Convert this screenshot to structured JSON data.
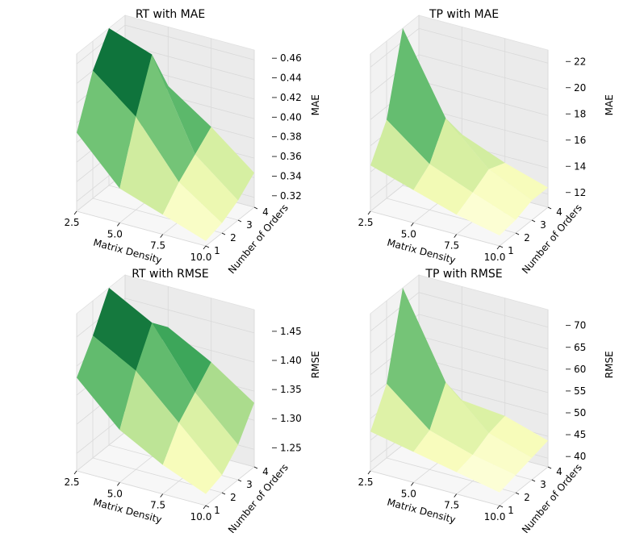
{
  "chart_data": [
    {
      "type": "surface3d",
      "title": "RT with MAE",
      "xlabel": "Matrix Density",
      "ylabel": "Number of Orders",
      "zlabel": "MAE",
      "x": [
        2.5,
        5.0,
        7.5,
        10.0
      ],
      "y": [
        1,
        2,
        3,
        4
      ],
      "xticks": [
        "2.5",
        "5.0",
        "7.5",
        "10.0"
      ],
      "yticks": [
        "1",
        "2",
        "3",
        "4"
      ],
      "zticks": [
        "0.32",
        "0.34",
        "0.36",
        "0.38",
        "0.40",
        "0.42",
        "0.44",
        "0.46"
      ],
      "zlim": [
        0.31,
        0.47
      ],
      "grid": true,
      "colormap": "Greens",
      "z": [
        [
          0.39,
          0.44,
          0.47,
          0.33
        ],
        [
          0.345,
          0.405,
          0.455,
          0.41
        ],
        [
          0.33,
          0.35,
          0.365,
          0.38
        ],
        [
          0.315,
          0.32,
          0.33,
          0.345
        ]
      ]
    },
    {
      "type": "surface3d",
      "title": "TP with MAE",
      "xlabel": "Matrix Density",
      "ylabel": "Number of Orders",
      "zlabel": "MAE",
      "x": [
        2.5,
        5.0,
        7.5,
        10.0
      ],
      "y": [
        1,
        2,
        3,
        4
      ],
      "xticks": [
        "2.5",
        "5.0",
        "7.5",
        "10.0"
      ],
      "yticks": [
        "1",
        "2",
        "3",
        "4"
      ],
      "zticks": [
        "12",
        "14",
        "16",
        "18",
        "20",
        "22"
      ],
      "zlim": [
        11,
        23
      ],
      "grid": true,
      "colormap": "Greens",
      "z": [
        [
          14.5,
          17.0,
          23.0,
          13.0
        ],
        [
          13.5,
          14.5,
          17.0,
          14.8
        ],
        [
          12.5,
          13.2,
          14.0,
          13.5
        ],
        [
          11.8,
          12.0,
          12.5,
          12.5
        ]
      ]
    },
    {
      "type": "surface3d",
      "title": "RT with RMSE",
      "xlabel": "Matrix Density",
      "ylabel": "Number of Orders",
      "zlabel": "RMSE",
      "x": [
        2.5,
        5.0,
        7.5,
        10.0
      ],
      "y": [
        1,
        2,
        3,
        4
      ],
      "xticks": [
        "2.5",
        "5.0",
        "7.5",
        "10.0"
      ],
      "yticks": [
        "1",
        "2",
        "3",
        "4"
      ],
      "zticks": [
        "1.25",
        "1.30",
        "1.35",
        "1.40",
        "1.45"
      ],
      "zlim": [
        1.22,
        1.49
      ],
      "grid": true,
      "colormap": "Greens",
      "z": [
        [
          1.38,
          1.43,
          1.49,
          1.25
        ],
        [
          1.31,
          1.39,
          1.45,
          1.42
        ],
        [
          1.27,
          1.32,
          1.35,
          1.38
        ],
        [
          1.24,
          1.25,
          1.28,
          1.33
        ]
      ]
    },
    {
      "type": "surface3d",
      "title": "TP with RMSE",
      "xlabel": "Matrix Density",
      "ylabel": "Number of Orders",
      "zlabel": "RMSE",
      "x": [
        2.5,
        5.0,
        7.5,
        10.0
      ],
      "y": [
        1,
        2,
        3,
        4
      ],
      "xticks": [
        "2.5",
        "5.0",
        "7.5",
        "10.0"
      ],
      "yticks": [
        "1",
        "2",
        "3",
        "4"
      ],
      "zticks": [
        "40",
        "45",
        "50",
        "55",
        "60",
        "65",
        "70"
      ],
      "zlim": [
        38,
        74
      ],
      "grid": true,
      "colormap": "Greens",
      "z": [
        [
          47,
          55,
          74,
          41
        ],
        [
          45,
          47,
          55,
          48
        ],
        [
          43,
          44,
          46,
          47
        ],
        [
          41,
          42,
          43,
          44
        ]
      ]
    }
  ]
}
